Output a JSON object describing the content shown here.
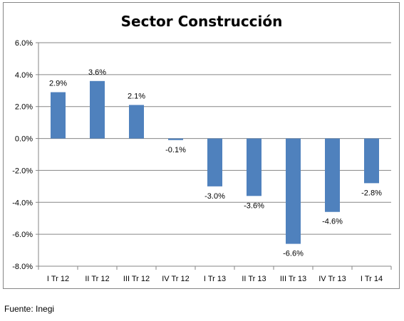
{
  "source_note": "Fuente: Inegi",
  "colors": {
    "bar": "#4f81bd",
    "grid": "#868686",
    "axis": "#868686",
    "text": "#000000"
  },
  "chart_data": {
    "type": "bar",
    "title": "Sector Construcción",
    "xlabel": "",
    "ylabel": "",
    "categories": [
      "I Tr 12",
      "II Tr 12",
      "III Tr 12",
      "IV Tr 12",
      "I Tr 13",
      "II Tr 13",
      "III Tr 13",
      "IV Tr 13",
      "I Tr 14"
    ],
    "values": [
      2.9,
      3.6,
      2.1,
      -0.1,
      -3.0,
      -3.6,
      -6.6,
      -4.6,
      -2.8
    ],
    "value_labels": [
      "2.9%",
      "3.6%",
      "2.1%",
      "-0.1%",
      "-3.0%",
      "-3.6%",
      "-6.6%",
      "-4.6%",
      "-2.8%"
    ],
    "ylim": [
      -8,
      6
    ],
    "yticks": [
      6,
      4,
      2,
      0,
      -2,
      -4,
      -6,
      -8
    ],
    "ytick_labels": [
      "6.0%",
      "4.0%",
      "2.0%",
      "0.0%",
      "-2.0%",
      "-4.0%",
      "-6.0%",
      "-8.0%"
    ],
    "grid": true,
    "legend": "none"
  }
}
